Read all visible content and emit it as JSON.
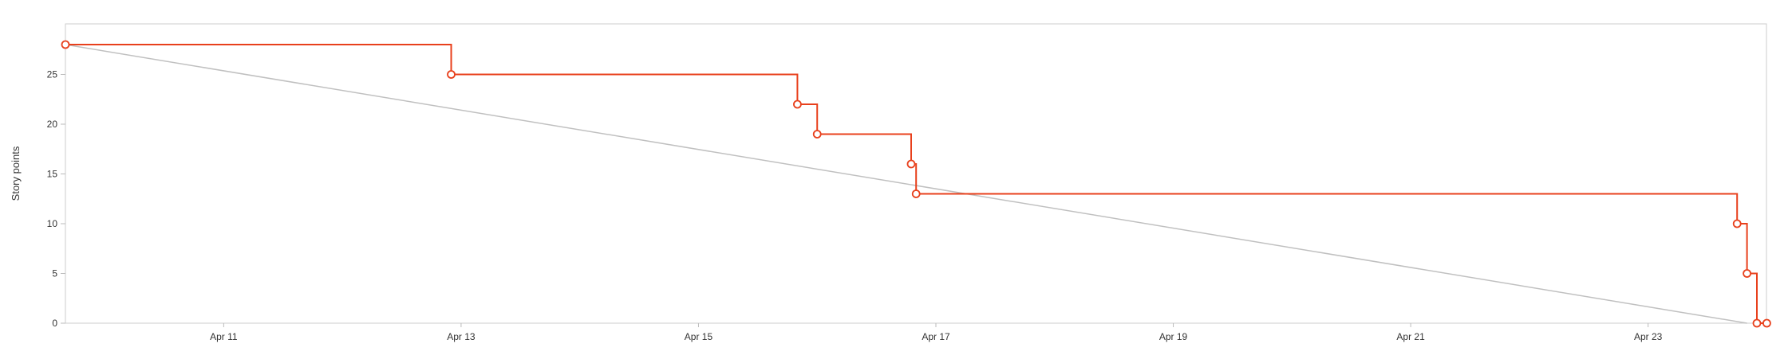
{
  "chart_data": {
    "type": "line",
    "ylabel": "Story points",
    "xlabel": "",
    "ylim": [
      0,
      30
    ],
    "yticks": [
      0,
      5,
      10,
      15,
      20,
      25
    ],
    "xlim": [
      "2023-04-09T16:00",
      "2023-04-23T22:00"
    ],
    "xticks": [
      {
        "value": "2023-04-11",
        "label": "Apr 11"
      },
      {
        "value": "2023-04-13",
        "label": "Apr 13"
      },
      {
        "value": "2023-04-15",
        "label": "Apr 15"
      },
      {
        "value": "2023-04-17",
        "label": "Apr 17"
      },
      {
        "value": "2023-04-19",
        "label": "Apr 19"
      },
      {
        "value": "2023-04-21",
        "label": "Apr 21"
      },
      {
        "value": "2023-04-23",
        "label": "Apr 23"
      }
    ],
    "grid": false,
    "colors": {
      "remaining": "#e8401c",
      "guideline": "#c0c0c0",
      "frame": "#cccccc"
    },
    "series": [
      {
        "role": "guideline",
        "points": [
          {
            "x": "2023-04-09T16:00",
            "y": 28
          },
          {
            "x": "2023-04-23T20:00",
            "y": 0
          }
        ]
      },
      {
        "role": "remaining",
        "step": true,
        "points": [
          {
            "x": "2023-04-09T16:00",
            "y": 28
          },
          {
            "x": "2023-04-12T22:00",
            "y": 25
          },
          {
            "x": "2023-04-15T20:00",
            "y": 22
          },
          {
            "x": "2023-04-16T00:00",
            "y": 19
          },
          {
            "x": "2023-04-16T19:00",
            "y": 16
          },
          {
            "x": "2023-04-16T20:00",
            "y": 13
          },
          {
            "x": "2023-04-23T18:00",
            "y": 10
          },
          {
            "x": "2023-04-23T20:00",
            "y": 5
          },
          {
            "x": "2023-04-23T22:00",
            "y": 0
          },
          {
            "x": "2023-04-24T00:00",
            "y": 0
          }
        ]
      }
    ]
  }
}
